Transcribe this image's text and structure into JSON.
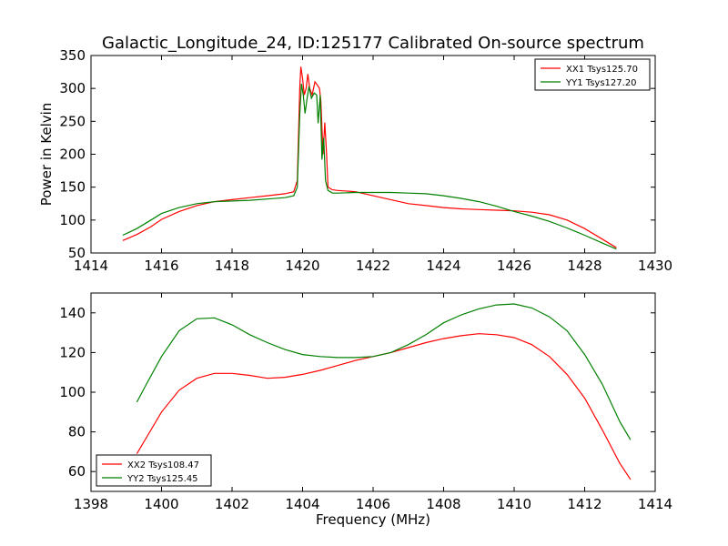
{
  "figure": {
    "title": "Galactic_Longitude_24, ID:125177 Calibrated On-source spectrum"
  },
  "chart_data": [
    {
      "type": "line",
      "title": "Galactic_Longitude_24, ID:125177 Calibrated On-source spectrum",
      "xlabel": "",
      "ylabel": "Power in Kelvin",
      "xlim": [
        1414,
        1430
      ],
      "ylim": [
        50,
        350
      ],
      "xticks": [
        "1414",
        "1416",
        "1418",
        "1420",
        "1422",
        "1424",
        "1426",
        "1428",
        "1430"
      ],
      "yticks": [
        "50",
        "100",
        "150",
        "200",
        "250",
        "300",
        "350"
      ],
      "grid": false,
      "legend_position": "upper right",
      "series": [
        {
          "name": "XX1 Tsys125.70",
          "color": "#ff0000",
          "points": [
            [
              1414.9,
              69
            ],
            [
              1415.3,
              78
            ],
            [
              1415.7,
              90
            ],
            [
              1416.0,
              101
            ],
            [
              1416.5,
              113
            ],
            [
              1417.0,
              122
            ],
            [
              1417.5,
              128
            ],
            [
              1418.0,
              131
            ],
            [
              1418.5,
              134
            ],
            [
              1419.0,
              137
            ],
            [
              1419.5,
              140
            ],
            [
              1419.75,
              143
            ],
            [
              1419.85,
              160
            ],
            [
              1419.92,
              300
            ],
            [
              1419.95,
              333
            ],
            [
              1420.0,
              315
            ],
            [
              1420.05,
              290
            ],
            [
              1420.1,
              300
            ],
            [
              1420.15,
              322
            ],
            [
              1420.2,
              300
            ],
            [
              1420.27,
              290
            ],
            [
              1420.35,
              310
            ],
            [
              1420.42,
              305
            ],
            [
              1420.48,
              300
            ],
            [
              1420.52,
              280
            ],
            [
              1420.58,
              200
            ],
            [
              1420.63,
              248
            ],
            [
              1420.68,
              200
            ],
            [
              1420.72,
              150
            ],
            [
              1420.85,
              146
            ],
            [
              1421.0,
              145
            ],
            [
              1421.5,
              143
            ],
            [
              1422.0,
              137
            ],
            [
              1422.5,
              131
            ],
            [
              1423.0,
              125
            ],
            [
              1423.5,
              122
            ],
            [
              1424.0,
              119
            ],
            [
              1424.5,
              117
            ],
            [
              1425.0,
              116
            ],
            [
              1425.5,
              115
            ],
            [
              1426.0,
              114
            ],
            [
              1426.5,
              112
            ],
            [
              1427.0,
              108
            ],
            [
              1427.5,
              100
            ],
            [
              1428.0,
              87
            ],
            [
              1428.5,
              71
            ],
            [
              1428.9,
              58
            ]
          ]
        },
        {
          "name": "YY1 Tsys127.20",
          "color": "#008000",
          "points": [
            [
              1414.9,
              77
            ],
            [
              1415.3,
              87
            ],
            [
              1415.7,
              100
            ],
            [
              1416.0,
              110
            ],
            [
              1416.5,
              119
            ],
            [
              1417.0,
              125
            ],
            [
              1417.5,
              128
            ],
            [
              1418.0,
              129
            ],
            [
              1418.5,
              130
            ],
            [
              1419.0,
              132
            ],
            [
              1419.5,
              134
            ],
            [
              1419.75,
              137
            ],
            [
              1419.85,
              150
            ],
            [
              1419.92,
              260
            ],
            [
              1419.97,
              307
            ],
            [
              1420.02,
              290
            ],
            [
              1420.07,
              262
            ],
            [
              1420.13,
              285
            ],
            [
              1420.18,
              303
            ],
            [
              1420.25,
              285
            ],
            [
              1420.33,
              293
            ],
            [
              1420.4,
              290
            ],
            [
              1420.44,
              247
            ],
            [
              1420.5,
              290
            ],
            [
              1420.55,
              192
            ],
            [
              1420.6,
              225
            ],
            [
              1420.65,
              160
            ],
            [
              1420.72,
              145
            ],
            [
              1420.85,
              141
            ],
            [
              1421.0,
              141
            ],
            [
              1421.5,
              142
            ],
            [
              1422.0,
              142
            ],
            [
              1422.5,
              142
            ],
            [
              1423.0,
              141
            ],
            [
              1423.5,
              140
            ],
            [
              1424.0,
              137
            ],
            [
              1424.5,
              133
            ],
            [
              1425.0,
              128
            ],
            [
              1425.5,
              121
            ],
            [
              1426.0,
              113
            ],
            [
              1426.5,
              106
            ],
            [
              1427.0,
              98
            ],
            [
              1427.5,
              88
            ],
            [
              1428.0,
              77
            ],
            [
              1428.5,
              65
            ],
            [
              1428.9,
              56
            ]
          ]
        }
      ]
    },
    {
      "type": "line",
      "title": "",
      "xlabel": "Frequency (MHz)",
      "ylabel": "",
      "xlim": [
        1398,
        1414
      ],
      "ylim": [
        50,
        150
      ],
      "xticks": [
        "1398",
        "1400",
        "1402",
        "1404",
        "1406",
        "1408",
        "1410",
        "1412",
        "1414"
      ],
      "yticks": [
        "60",
        "80",
        "100",
        "120",
        "140"
      ],
      "grid": false,
      "legend_position": "lower left",
      "series": [
        {
          "name": "XX2 Tsys108.47",
          "color": "#ff0000",
          "points": [
            [
              1399.3,
              69
            ],
            [
              1399.6,
              78
            ],
            [
              1400.0,
              90
            ],
            [
              1400.5,
              101
            ],
            [
              1401.0,
              107
            ],
            [
              1401.5,
              109.5
            ],
            [
              1402.0,
              109.5
            ],
            [
              1402.5,
              108.5
            ],
            [
              1403.0,
              107
            ],
            [
              1403.5,
              107.5
            ],
            [
              1404.0,
              109
            ],
            [
              1404.5,
              111
            ],
            [
              1405.0,
              113.5
            ],
            [
              1405.5,
              116
            ],
            [
              1406.0,
              118
            ],
            [
              1406.5,
              120
            ],
            [
              1407.0,
              122.5
            ],
            [
              1407.5,
              125
            ],
            [
              1408.0,
              127
            ],
            [
              1408.5,
              128.5
            ],
            [
              1409.0,
              129.5
            ],
            [
              1409.5,
              129
            ],
            [
              1410.0,
              127.5
            ],
            [
              1410.5,
              124
            ],
            [
              1411.0,
              118
            ],
            [
              1411.5,
              109
            ],
            [
              1412.0,
              97
            ],
            [
              1412.5,
              81
            ],
            [
              1413.0,
              64
            ],
            [
              1413.3,
              56
            ]
          ]
        },
        {
          "name": "YY2 Tsys125.45",
          "color": "#008000",
          "points": [
            [
              1399.3,
              95
            ],
            [
              1399.6,
              105
            ],
            [
              1400.0,
              118
            ],
            [
              1400.5,
              131
            ],
            [
              1401.0,
              137
            ],
            [
              1401.5,
              137.5
            ],
            [
              1402.0,
              134
            ],
            [
              1402.5,
              129
            ],
            [
              1403.0,
              125
            ],
            [
              1403.5,
              121.5
            ],
            [
              1404.0,
              119
            ],
            [
              1404.5,
              118
            ],
            [
              1405.0,
              117.5
            ],
            [
              1405.5,
              117.5
            ],
            [
              1406.0,
              118
            ],
            [
              1406.5,
              120
            ],
            [
              1407.0,
              124
            ],
            [
              1407.5,
              129
            ],
            [
              1408.0,
              135
            ],
            [
              1408.5,
              139
            ],
            [
              1409.0,
              142
            ],
            [
              1409.5,
              144
            ],
            [
              1410.0,
              144.5
            ],
            [
              1410.5,
              142.5
            ],
            [
              1411.0,
              138
            ],
            [
              1411.5,
              131
            ],
            [
              1412.0,
              119
            ],
            [
              1412.5,
              104
            ],
            [
              1413.0,
              85
            ],
            [
              1413.3,
              76
            ]
          ]
        }
      ]
    }
  ]
}
